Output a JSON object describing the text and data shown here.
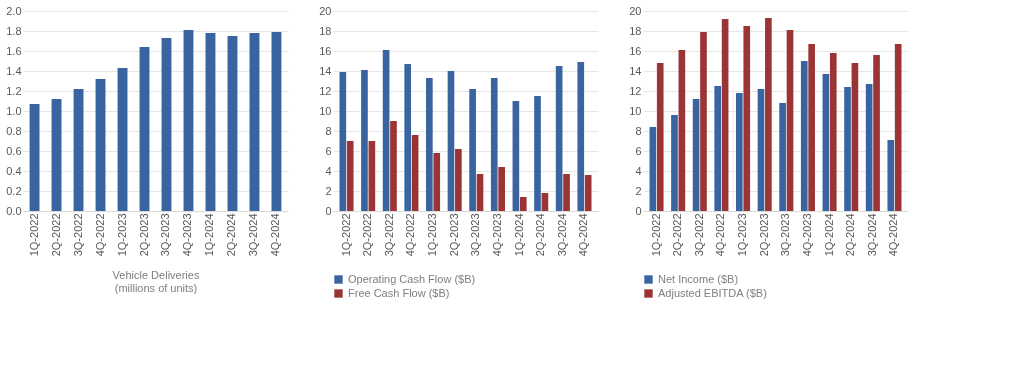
{
  "chart_data": [
    {
      "type": "bar",
      "xlabel": "Vehicle Deliveries\n(millions of units)",
      "categories": [
        "1Q-2022",
        "2Q-2022",
        "3Q-2022",
        "4Q-2022",
        "1Q-2023",
        "2Q-2023",
        "3Q-2023",
        "4Q-2023",
        "1Q-2024",
        "2Q-2024",
        "3Q-2024",
        "4Q-2024"
      ],
      "series": [
        {
          "color": "#3a64a0",
          "values": [
            1.07,
            1.12,
            1.22,
            1.32,
            1.43,
            1.64,
            1.73,
            1.81,
            1.78,
            1.75,
            1.78,
            1.79
          ]
        }
      ],
      "ylim": [
        0,
        2.0
      ],
      "yticks": [
        {
          "value": 0,
          "label": "0.0"
        },
        {
          "value": 0.2,
          "label": "0.2"
        },
        {
          "value": 0.4,
          "label": "0.4"
        },
        {
          "value": 0.6,
          "label": "0.6"
        },
        {
          "value": 0.8,
          "label": "0.8"
        },
        {
          "value": 1.0,
          "label": "1.0"
        },
        {
          "value": 1.2,
          "label": "1.2"
        },
        {
          "value": 1.4,
          "label": "1.4"
        },
        {
          "value": 1.6,
          "label": "1.6"
        },
        {
          "value": 1.8,
          "label": "1.8"
        },
        {
          "value": 2.0,
          "label": "2.0"
        }
      ],
      "grid": "y"
    },
    {
      "type": "bar",
      "categories": [
        "1Q-2022",
        "2Q-2022",
        "3Q-2022",
        "4Q-2022",
        "1Q-2023",
        "2Q-2023",
        "3Q-2023",
        "4Q-2023",
        "1Q-2024",
        "2Q-2024",
        "3Q-2024",
        "4Q-2024"
      ],
      "series": [
        {
          "name": "Operating Cash Flow ($B)",
          "color": "#3a64a0",
          "values": [
            13.9,
            14.1,
            16.1,
            14.7,
            13.3,
            14.0,
            12.2,
            13.3,
            11.0,
            11.5,
            14.5,
            14.9
          ]
        },
        {
          "name": "Free Cash Flow ($B)",
          "color": "#9b3434",
          "values": [
            7.0,
            7.0,
            9.0,
            7.6,
            5.8,
            6.2,
            3.7,
            4.4,
            1.4,
            1.8,
            3.7,
            3.6
          ]
        }
      ],
      "ylim": [
        0,
        20
      ],
      "yticks": [
        0,
        2,
        4,
        6,
        8,
        10,
        12,
        14,
        16,
        18,
        20
      ],
      "grid": "y",
      "legend": "bottom"
    },
    {
      "type": "bar",
      "categories": [
        "1Q-2022",
        "2Q-2022",
        "3Q-2022",
        "4Q-2022",
        "1Q-2023",
        "2Q-2023",
        "3Q-2023",
        "4Q-2023",
        "1Q-2024",
        "2Q-2024",
        "3Q-2024",
        "4Q-2024"
      ],
      "series": [
        {
          "name": "Net Income ($B)",
          "color": "#3a64a0",
          "values": [
            8.4,
            9.6,
            11.2,
            12.5,
            11.8,
            12.2,
            10.8,
            15.0,
            13.7,
            12.4,
            12.7,
            7.1
          ]
        },
        {
          "name": "Adjusted EBITDA ($B)",
          "color": "#9b3434",
          "values": [
            14.8,
            16.1,
            17.9,
            19.2,
            18.5,
            19.3,
            18.1,
            16.7,
            15.8,
            14.8,
            15.6,
            16.7
          ]
        }
      ],
      "ylim": [
        0,
        20
      ],
      "yticks": [
        0,
        2,
        4,
        6,
        8,
        10,
        12,
        14,
        16,
        18,
        20
      ],
      "grid": "y",
      "legend": "bottom"
    }
  ]
}
